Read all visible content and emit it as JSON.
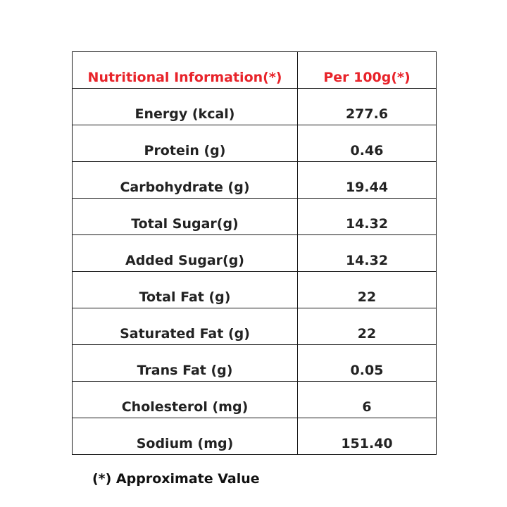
{
  "table": {
    "header": {
      "name": "Nutritional Information(*)",
      "value": "Per 100g(*)"
    },
    "rows": [
      {
        "name": "Energy (kcal)",
        "value": "277.6"
      },
      {
        "name": "Protein (g)",
        "value": "0.46"
      },
      {
        "name": "Carbohydrate (g)",
        "value": "19.44"
      },
      {
        "name": "Total Sugar(g)",
        "value": "14.32"
      },
      {
        "name": "Added Sugar(g)",
        "value": "14.32"
      },
      {
        "name": "Total Fat (g)",
        "value": "22"
      },
      {
        "name": "Saturated Fat (g)",
        "value": "22"
      },
      {
        "name": "Trans Fat (g)",
        "value": "0.05"
      },
      {
        "name": "Cholesterol (mg)",
        "value": "6"
      },
      {
        "name": "Sodium (mg)",
        "value": "151.40"
      }
    ]
  },
  "footnote": "(*) Approximate Value",
  "colors": {
    "header_text": "#e8232a",
    "body_text": "#222222",
    "border": "#1a1a1a"
  }
}
